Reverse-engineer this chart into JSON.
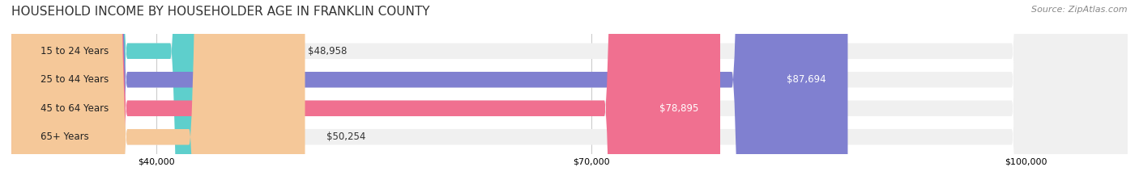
{
  "title": "HOUSEHOLD INCOME BY HOUSEHOLDER AGE IN FRANKLIN COUNTY",
  "source": "Source: ZipAtlas.com",
  "categories": [
    "15 to 24 Years",
    "25 to 44 Years",
    "45 to 64 Years",
    "65+ Years"
  ],
  "values": [
    48958,
    87694,
    78895,
    50254
  ],
  "bar_colors": [
    "#5ECFCC",
    "#8080D0",
    "#F07090",
    "#F5C899"
  ],
  "bar_bg_color": "#F0F0F0",
  "label_colors": [
    "#333333",
    "#FFFFFF",
    "#FFFFFF",
    "#333333"
  ],
  "xmin": 30000,
  "xmax": 107000,
  "xticks": [
    40000,
    70000,
    100000
  ],
  "xtick_labels": [
    "$40,000",
    "$70,000",
    "$100,000"
  ],
  "title_fontsize": 11,
  "source_fontsize": 8,
  "bar_height": 0.55,
  "background_color": "#FFFFFF"
}
